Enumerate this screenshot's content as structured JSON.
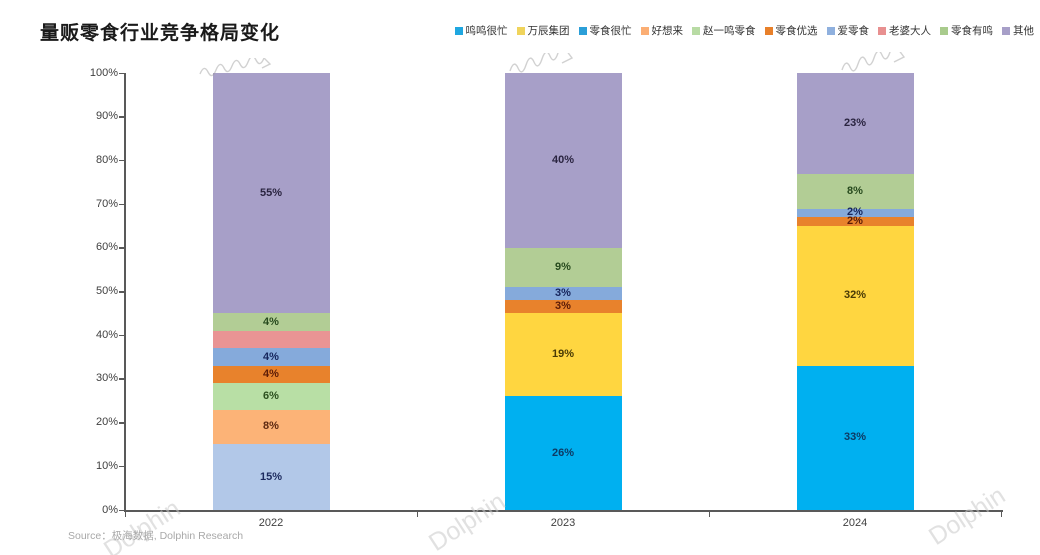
{
  "title": "量贩零食行业竞争格局变化",
  "source": "Source：极海数据, Dolphin Research",
  "watermark_text": "Dolphin",
  "axis_color": "#595959",
  "chart_data": {
    "type": "bar",
    "stacked": true,
    "title": "量贩零食行业竞争格局变化",
    "xlabel": "",
    "ylabel": "",
    "ylim": [
      0,
      100
    ],
    "grid": false,
    "legend_position": "top-right",
    "categories": [
      "2022",
      "2023",
      "2024"
    ],
    "yticks": [
      "0%",
      "10%",
      "20%",
      "30%",
      "40%",
      "50%",
      "60%",
      "70%",
      "80%",
      "90%",
      "100%"
    ],
    "series": [
      {
        "name": "鸣鸣很忙",
        "color": "#00b0f0",
        "legend_color": "#1fa7e0",
        "label_color": "#0d3a63",
        "values": [
          0,
          26,
          33
        ]
      },
      {
        "name": "万辰集团",
        "color": "#ffd640",
        "legend_color": "#f0d45c",
        "label_color": "#4a3b05",
        "values": [
          0,
          19,
          32
        ]
      },
      {
        "name": "零食很忙",
        "color": "#b2c8e8",
        "legend_color": "#2b9fd8",
        "label_color": "#1c2a5e",
        "values": [
          15,
          0,
          0
        ]
      },
      {
        "name": "好想来",
        "color": "#fcb377",
        "legend_color": "#fbae74",
        "label_color": "#5e2a12",
        "values": [
          8,
          0,
          0
        ]
      },
      {
        "name": "赵一鸣零食",
        "color": "#b8dfa5",
        "legend_color": "#b8dba4",
        "label_color": "#2c501f",
        "values": [
          6,
          0,
          0
        ]
      },
      {
        "name": "零食优选",
        "color": "#e8822c",
        "legend_color": "#e8802a",
        "label_color": "#5c1c07",
        "values": [
          4,
          3,
          2
        ]
      },
      {
        "name": "爱零食",
        "color": "#85aadb",
        "legend_color": "#8fb0de",
        "label_color": "#16255c",
        "values": [
          4,
          3,
          2
        ]
      },
      {
        "name": "老婆大人",
        "color": "#e99494",
        "legend_color": "#e89090",
        "label_color": "#6b1f1f",
        "values": [
          4,
          0,
          0
        ],
        "hide_label": true
      },
      {
        "name": "零食有鸣",
        "color": "#b2cd95",
        "legend_color": "#a9cb8d",
        "label_color": "#274a1e",
        "values": [
          4,
          9,
          8
        ]
      },
      {
        "name": "其他",
        "color": "#a79fc8",
        "legend_color": "#a79fc8",
        "label_color": "#2a2440",
        "values": [
          55,
          40,
          23
        ]
      }
    ]
  }
}
